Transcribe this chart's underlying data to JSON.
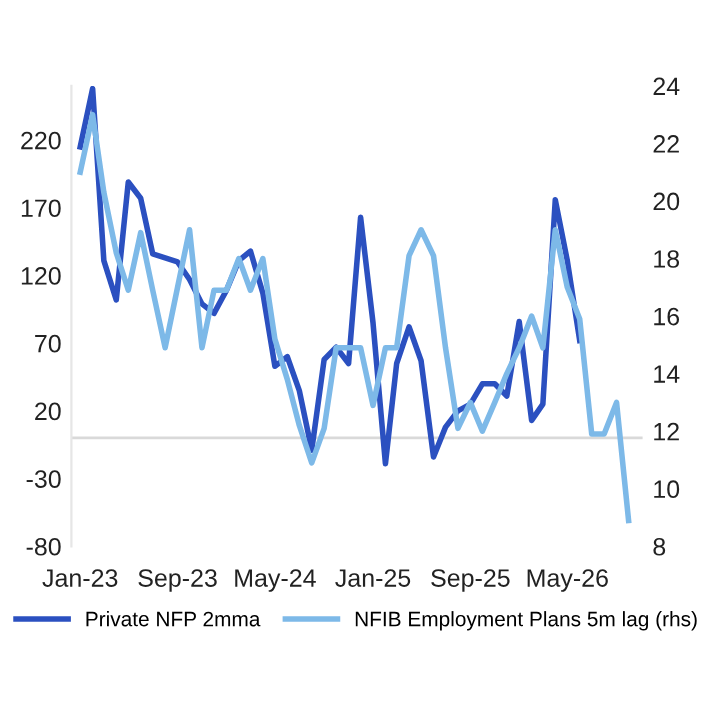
{
  "chart_data": {
    "type": "line",
    "x": [
      "2023-01",
      "2023-02",
      "2023-03",
      "2023-04",
      "2023-05",
      "2023-06",
      "2023-07",
      "2023-08",
      "2023-09",
      "2023-10",
      "2023-11",
      "2023-12",
      "2024-01",
      "2024-02",
      "2024-03",
      "2024-04",
      "2024-05",
      "2024-06",
      "2024-07",
      "2024-08",
      "2024-09",
      "2024-10",
      "2024-11",
      "2024-12",
      "2025-01",
      "2025-02",
      "2025-03",
      "2025-04",
      "2025-05",
      "2025-06",
      "2025-07",
      "2025-08",
      "2025-09",
      "2025-10",
      "2025-11",
      "2025-12",
      "2026-01",
      "2026-02",
      "2026-03",
      "2026-04",
      "2026-05",
      "2026-06",
      "2026-07",
      "2026-08",
      "2026-09",
      "2026-10"
    ],
    "series": [
      {
        "name": "Private NFP 2mma",
        "color": "#2b50c0",
        "values": [
          215,
          258,
          131,
          102,
          189,
          177,
          136,
          133,
          130,
          117,
          99,
          92,
          109,
          131,
          138,
          107,
          53,
          60,
          35,
          -9,
          58,
          67,
          55,
          163,
          85,
          -19,
          55,
          82,
          57,
          -14,
          8,
          20,
          25,
          40,
          40,
          31,
          86,
          13,
          25,
          176,
          131,
          72,
          null,
          null,
          null,
          null
        ]
      },
      {
        "name": "NFIB Employment Plans 5m lag (rhs)",
        "color": "#7db9e8",
        "axis": "y2",
        "values": [
          21.0,
          23.0,
          20.3,
          18.2,
          16.9,
          18.9,
          16.9,
          14.9,
          17.0,
          19.0,
          14.9,
          16.9,
          16.9,
          18.0,
          16.9,
          18.0,
          15.2,
          13.8,
          12.2,
          10.9,
          12.1,
          14.9,
          14.9,
          14.9,
          12.9,
          14.9,
          14.9,
          18.1,
          19.0,
          18.1,
          14.9,
          12.1,
          13.0,
          12.0,
          13.0,
          14.0,
          14.9,
          16.0,
          14.9,
          19.0,
          17.0,
          15.9,
          11.9,
          11.9,
          13.0,
          8.9
        ]
      }
    ],
    "xlim": [
      "2022-12-10",
      "2026-11-05"
    ],
    "xticks": [
      {
        "value": "2023-01",
        "label": "Jan-23"
      },
      {
        "value": "2023-09",
        "label": "Sep-23"
      },
      {
        "value": "2024-05",
        "label": "May-24"
      },
      {
        "value": "2025-01",
        "label": "Jan-25"
      },
      {
        "value": "2025-09",
        "label": "Sep-25"
      },
      {
        "value": "2026-05",
        "label": "May-26"
      }
    ],
    "ylim": [
      -80,
      260
    ],
    "yticks": [
      -80,
      -30,
      20,
      70,
      120,
      170,
      220
    ],
    "y2lim": [
      8,
      24
    ],
    "y2ticks": [
      8,
      10,
      12,
      14,
      16,
      18,
      20,
      22,
      24
    ],
    "ref_lines": [
      {
        "axis": "y",
        "value": 0,
        "color": "#d9d9d9"
      }
    ],
    "legend": "bottom",
    "grid": false
  }
}
